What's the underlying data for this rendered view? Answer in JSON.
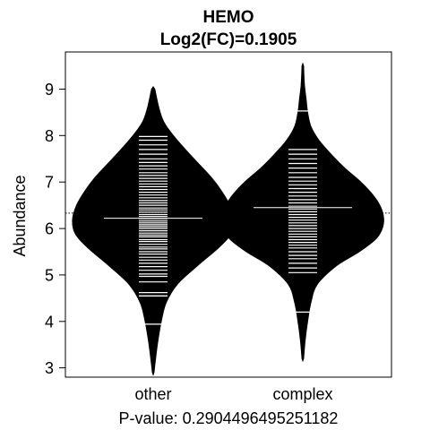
{
  "chart_data": {
    "type": "beanplot",
    "title": "HEMO",
    "subtitle": "Log2(FC)=0.1905",
    "xlabel": "P-value: 0.2904496495251182",
    "ylabel": "Abundance",
    "categories": [
      "other",
      "complex"
    ],
    "ylim": [
      2.8,
      9.8
    ],
    "yticks": [
      3,
      4,
      5,
      6,
      7,
      8,
      9
    ],
    "overall_mean": 6.33,
    "groups": [
      {
        "name": "other",
        "mean": 6.22,
        "tail_lines": [
          3.94,
          4.55,
          7.98
        ],
        "density": [
          {
            "y": 2.9,
            "w": 0.01
          },
          {
            "y": 3.2,
            "w": 0.03
          },
          {
            "y": 3.6,
            "w": 0.06
          },
          {
            "y": 4.0,
            "w": 0.1
          },
          {
            "y": 4.4,
            "w": 0.16
          },
          {
            "y": 4.8,
            "w": 0.3
          },
          {
            "y": 5.2,
            "w": 0.55
          },
          {
            "y": 5.6,
            "w": 0.82
          },
          {
            "y": 5.9,
            "w": 0.97
          },
          {
            "y": 6.2,
            "w": 1.0
          },
          {
            "y": 6.5,
            "w": 0.95
          },
          {
            "y": 6.8,
            "w": 0.85
          },
          {
            "y": 7.1,
            "w": 0.72
          },
          {
            "y": 7.4,
            "w": 0.56
          },
          {
            "y": 7.7,
            "w": 0.4
          },
          {
            "y": 8.0,
            "w": 0.25
          },
          {
            "y": 8.3,
            "w": 0.13
          },
          {
            "y": 8.6,
            "w": 0.07
          },
          {
            "y": 9.0,
            "w": 0.02
          }
        ],
        "observations": [
          4.62,
          4.85,
          4.97,
          5.02,
          5.1,
          5.18,
          5.25,
          5.32,
          5.38,
          5.45,
          5.5,
          5.56,
          5.6,
          5.66,
          5.72,
          5.76,
          5.82,
          5.86,
          5.9,
          5.95,
          6.0,
          6.04,
          6.08,
          6.12,
          6.16,
          6.2,
          6.26,
          6.3,
          6.35,
          6.4,
          6.44,
          6.5,
          6.55,
          6.6,
          6.66,
          6.72,
          6.78,
          6.84,
          6.9,
          6.96,
          7.02,
          7.08,
          7.14,
          7.2,
          7.28,
          7.35,
          7.42,
          7.5,
          7.6,
          7.7,
          7.8,
          7.9
        ]
      },
      {
        "name": "complex",
        "mean": 6.45,
        "tail_lines": [
          4.2,
          8.53
        ],
        "density": [
          {
            "y": 3.2,
            "w": 0.01
          },
          {
            "y": 3.6,
            "w": 0.03
          },
          {
            "y": 4.0,
            "w": 0.06
          },
          {
            "y": 4.4,
            "w": 0.1
          },
          {
            "y": 4.8,
            "w": 0.18
          },
          {
            "y": 5.2,
            "w": 0.42
          },
          {
            "y": 5.5,
            "w": 0.7
          },
          {
            "y": 5.8,
            "w": 0.92
          },
          {
            "y": 6.1,
            "w": 1.0
          },
          {
            "y": 6.4,
            "w": 0.98
          },
          {
            "y": 6.7,
            "w": 0.88
          },
          {
            "y": 7.0,
            "w": 0.72
          },
          {
            "y": 7.3,
            "w": 0.52
          },
          {
            "y": 7.6,
            "w": 0.35
          },
          {
            "y": 7.9,
            "w": 0.2
          },
          {
            "y": 8.2,
            "w": 0.1
          },
          {
            "y": 8.5,
            "w": 0.06
          },
          {
            "y": 8.8,
            "w": 0.04
          },
          {
            "y": 9.1,
            "w": 0.02
          },
          {
            "y": 9.5,
            "w": 0.01
          }
        ],
        "observations": [
          5.05,
          5.15,
          5.25,
          5.35,
          5.42,
          5.5,
          5.58,
          5.64,
          5.7,
          5.76,
          5.82,
          5.88,
          5.94,
          6.0,
          6.06,
          6.12,
          6.18,
          6.24,
          6.3,
          6.36,
          6.42,
          6.48,
          6.55,
          6.62,
          6.7,
          6.78,
          6.86,
          6.94,
          7.02,
          7.1,
          7.2,
          7.3,
          7.4,
          7.5,
          7.6,
          7.7
        ]
      }
    ],
    "grid": false,
    "legend": "none"
  }
}
